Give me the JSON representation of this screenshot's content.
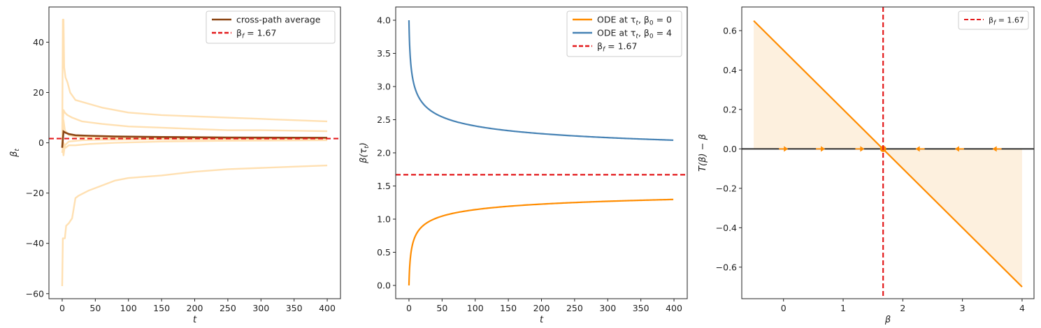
{
  "colors": {
    "light_orange": "#ffe0b2",
    "orange": "#ff8c00",
    "brown": "#8b4513",
    "steelblue": "#4682b4",
    "red": "#e31a1c",
    "fill": "#fdf0de"
  },
  "chart_data": [
    {
      "type": "line",
      "xlabel": "t",
      "ylabel": "β_t",
      "xlim": [
        -20,
        420
      ],
      "ylim": [
        -62,
        54
      ],
      "xticks": [
        0,
        50,
        100,
        150,
        200,
        250,
        300,
        350,
        400
      ],
      "yticks": [
        -60,
        -40,
        -20,
        0,
        20,
        40
      ],
      "ytick_labels": [
        "−60",
        "−40",
        "−20",
        "0",
        "20",
        "40"
      ],
      "legend_position": "upper right",
      "legend": [
        {
          "kind": "line",
          "text": "cross-path average"
        },
        {
          "kind": "dashed",
          "text_prefix": "β",
          "text_sub": "f",
          "text_rest": " = 1.67"
        }
      ],
      "hline": 1.67,
      "paths": [
        {
          "role": "path",
          "points": [
            [
              0,
              -2
            ],
            [
              1,
              49
            ],
            [
              2,
              49
            ],
            [
              3,
              30
            ],
            [
              5,
              26
            ],
            [
              8,
              24
            ],
            [
              12,
              20
            ],
            [
              20,
              17
            ],
            [
              40,
              15.5
            ],
            [
              60,
              14
            ],
            [
              100,
              12
            ],
            [
              150,
              11
            ],
            [
              200,
              10.5
            ],
            [
              250,
              10
            ],
            [
              300,
              9.5
            ],
            [
              350,
              9
            ],
            [
              400,
              8.5
            ]
          ]
        },
        {
          "role": "path",
          "points": [
            [
              0,
              -57
            ],
            [
              1,
              -38
            ],
            [
              4,
              -38
            ],
            [
              6,
              -33
            ],
            [
              10,
              -32
            ],
            [
              15,
              -30
            ],
            [
              20,
              -22
            ],
            [
              25,
              -21
            ],
            [
              40,
              -19
            ],
            [
              60,
              -17
            ],
            [
              80,
              -15
            ],
            [
              100,
              -14
            ],
            [
              150,
              -13
            ],
            [
              200,
              -11.5
            ],
            [
              250,
              -10.5
            ],
            [
              300,
              -10
            ],
            [
              350,
              -9.5
            ],
            [
              400,
              -9
            ]
          ]
        },
        {
          "role": "path",
          "points": [
            [
              0,
              2
            ],
            [
              2,
              13
            ],
            [
              4,
              12
            ],
            [
              8,
              11
            ],
            [
              15,
              10
            ],
            [
              30,
              8.5
            ],
            [
              60,
              7.5
            ],
            [
              100,
              6.5
            ],
            [
              150,
              6
            ],
            [
              200,
              5.5
            ],
            [
              250,
              5
            ],
            [
              300,
              5
            ],
            [
              350,
              4.8
            ],
            [
              400,
              4.6
            ]
          ]
        },
        {
          "role": "path",
          "points": [
            [
              0,
              -4
            ],
            [
              2,
              0
            ],
            [
              5,
              -2
            ],
            [
              10,
              -1
            ],
            [
              20,
              -1
            ],
            [
              40,
              -0.5
            ],
            [
              80,
              0
            ],
            [
              150,
              0.5
            ],
            [
              250,
              0.8
            ],
            [
              400,
              1
            ]
          ]
        },
        {
          "role": "path",
          "points": [
            [
              0,
              1
            ],
            [
              2,
              9
            ],
            [
              4,
              5
            ],
            [
              10,
              3
            ],
            [
              20,
              2.5
            ],
            [
              50,
              2
            ],
            [
              100,
              1.8
            ],
            [
              200,
              1.6
            ],
            [
              400,
              1.5
            ]
          ]
        },
        {
          "role": "path",
          "points": [
            [
              0,
              0
            ],
            [
              2,
              -5
            ],
            [
              4,
              -1
            ],
            [
              10,
              0.5
            ],
            [
              30,
              1
            ],
            [
              60,
              1.2
            ],
            [
              150,
              1.4
            ],
            [
              400,
              1.5
            ]
          ]
        }
      ],
      "average": {
        "points": [
          [
            0,
            -2
          ],
          [
            2,
            4.5
          ],
          [
            5,
            4
          ],
          [
            10,
            3.5
          ],
          [
            20,
            3
          ],
          [
            40,
            2.8
          ],
          [
            80,
            2.5
          ],
          [
            150,
            2.3
          ],
          [
            250,
            2.1
          ],
          [
            400,
            2
          ]
        ]
      }
    },
    {
      "type": "line",
      "xlabel": "t",
      "ylabel": "β(τ_t)",
      "xlim": [
        -20,
        420
      ],
      "ylim": [
        -0.2,
        4.2
      ],
      "xticks": [
        0,
        50,
        100,
        150,
        200,
        250,
        300,
        350,
        400
      ],
      "yticks": [
        0,
        0.5,
        1,
        1.5,
        2,
        2.5,
        3,
        3.5,
        4
      ],
      "ytick_labels": [
        "0.0",
        "0.5",
        "1.0",
        "1.5",
        "2.0",
        "2.5",
        "3.0",
        "3.5",
        "4.0"
      ],
      "legend_position": "upper right",
      "legend": [
        {
          "kind": "line",
          "series": "a",
          "text_prefix": "ODE at τ",
          "text_sub": "t",
          "text_mid": ", β",
          "text_sub2": "0",
          "text_rest": " = 0"
        },
        {
          "kind": "line",
          "series": "b",
          "text_prefix": "ODE at τ",
          "text_sub": "t",
          "text_mid": ", β",
          "text_sub2": "0",
          "text_rest": " = 4"
        },
        {
          "kind": "dashed",
          "text_prefix": "β",
          "text_sub": "f",
          "text_rest": " = 1.67"
        }
      ],
      "hline": 1.67,
      "beta_f": 1.67,
      "beta0": [
        0,
        4
      ],
      "t_range": [
        1,
        400
      ]
    },
    {
      "type": "line",
      "xlabel": "β",
      "ylabel": "T(β) − β",
      "xlim": [
        -0.7,
        4.2
      ],
      "ylim": [
        -0.76,
        0.72
      ],
      "xticks": [
        0,
        1,
        2,
        3,
        4
      ],
      "xtick_labels": [
        "0",
        "1",
        "2",
        "3",
        "4"
      ],
      "yticks": [
        -0.6,
        -0.4,
        -0.2,
        0,
        0.2,
        0.4,
        0.6
      ],
      "ytick_labels": [
        "−0.6",
        "−0.4",
        "−0.2",
        "0.0",
        "0.2",
        "0.4",
        "0.6"
      ],
      "legend_position": "upper right",
      "legend": [
        {
          "kind": "dashed",
          "text_prefix": "β",
          "text_sub": "f",
          "text_rest": " = 1.67"
        }
      ],
      "line": {
        "x": [
          -0.5,
          4
        ],
        "y": [
          0.65,
          -0.7
        ]
      },
      "vline": 1.67,
      "arrows_x": [
        0,
        0.62,
        1.28,
        2.29,
        2.95,
        3.58
      ]
    }
  ]
}
